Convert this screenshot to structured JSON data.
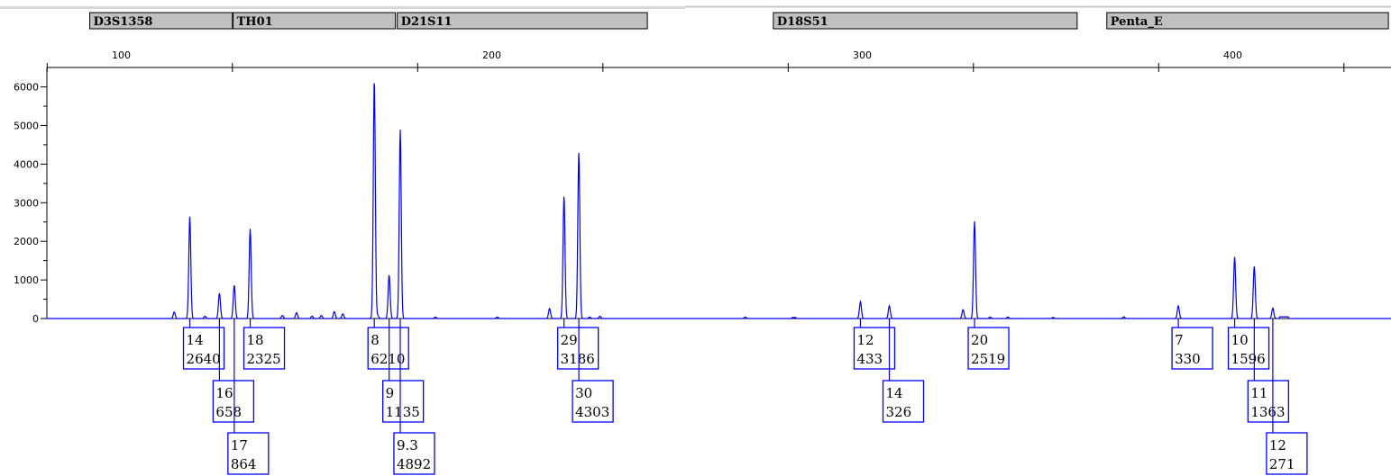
{
  "chart_data": {
    "type": "line",
    "title": "",
    "xlabel": "",
    "ylabel": "",
    "xlim": [
      80,
      442
    ],
    "ylim": [
      0,
      6200
    ],
    "x_ticks": [
      100,
      200,
      300,
      400
    ],
    "y_ticks": [
      0,
      1000,
      2000,
      3000,
      4000,
      5000,
      6000
    ],
    "colors": {
      "trace": "#0000ff",
      "marker_box": "#0000ff",
      "locus_bar": "#c0c0c0"
    },
    "loci": [
      {
        "name": "D3S1358",
        "range": [
          91.5,
          130
        ]
      },
      {
        "name": "TH01",
        "range": [
          130.2,
          174
        ]
      },
      {
        "name": "D21S11",
        "range": [
          174.5,
          242
        ]
      },
      {
        "name": "D18S51",
        "range": [
          276,
          358
        ]
      },
      {
        "name": "Penta_E",
        "range": [
          366,
          442
        ]
      }
    ],
    "alleles": [
      {
        "allele": "14",
        "height": "2640",
        "size": 118.5
      },
      {
        "allele": "16",
        "height": "658",
        "size": 126.5
      },
      {
        "allele": "17",
        "height": "864",
        "size": 130.5
      },
      {
        "allele": "18",
        "height": "2325",
        "size": 134.8
      },
      {
        "allele": "8",
        "height": "6210",
        "size": 168.3
      },
      {
        "allele": "9",
        "height": "1135",
        "size": 172.3
      },
      {
        "allele": "9.3",
        "height": "4892",
        "size": 175.3
      },
      {
        "allele": "29",
        "height": "3186",
        "size": 219.5
      },
      {
        "allele": "30",
        "height": "4303",
        "size": 223.5
      },
      {
        "allele": "12",
        "height": "433",
        "size": 299.5
      },
      {
        "allele": "14",
        "height": "326",
        "size": 307.3
      },
      {
        "allele": "20",
        "height": "2519",
        "size": 330.3
      },
      {
        "allele": "7",
        "height": "330",
        "size": 385.3
      },
      {
        "allele": "10",
        "height": "1596",
        "size": 400.5
      },
      {
        "allele": "11",
        "height": "1363",
        "size": 405.8
      },
      {
        "allele": "12",
        "height": "271",
        "size": 410.8
      }
    ],
    "minor_peaks": [
      {
        "x": 114.3,
        "y": 170
      },
      {
        "x": 122.6,
        "y": 60
      },
      {
        "x": 143.5,
        "y": 80
      },
      {
        "x": 147.3,
        "y": 150
      },
      {
        "x": 151.5,
        "y": 60
      },
      {
        "x": 154.0,
        "y": 80
      },
      {
        "x": 157.5,
        "y": 180
      },
      {
        "x": 159.8,
        "y": 120
      },
      {
        "x": 169.2,
        "y": 80
      },
      {
        "x": 184.8,
        "y": 40
      },
      {
        "x": 201.5,
        "y": 40
      },
      {
        "x": 215.6,
        "y": 260
      },
      {
        "x": 226.4,
        "y": 40
      },
      {
        "x": 229.2,
        "y": 60
      },
      {
        "x": 268.4,
        "y": 40
      },
      {
        "x": 281.5,
        "y": 25
      },
      {
        "x": 327.2,
        "y": 230
      },
      {
        "x": 334.5,
        "y": 40
      },
      {
        "x": 339.3,
        "y": 40
      },
      {
        "x": 351.5,
        "y": 30
      },
      {
        "x": 370.6,
        "y": 45
      },
      {
        "x": 413.8,
        "y": 45
      }
    ],
    "flat_segments": [
      {
        "x0": 281.0,
        "x1": 282.2,
        "y": 25
      },
      {
        "x0": 412.6,
        "x1": 415.0,
        "y": 45
      }
    ]
  }
}
